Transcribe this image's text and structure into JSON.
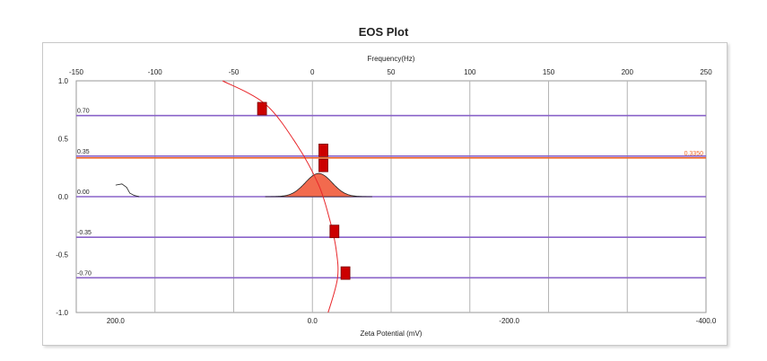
{
  "chart_data": {
    "type": "line",
    "title": "EOS Plot",
    "top_axis": {
      "label": "Frequency(Hz)",
      "range": [
        -150,
        250
      ],
      "ticks": [
        -150,
        -100,
        -50,
        0,
        50,
        100,
        150,
        200,
        250
      ],
      "tick_labels": [
        "-150",
        "-100",
        "-50",
        "0",
        "50",
        "100",
        "150",
        "200",
        "250"
      ]
    },
    "bottom_axis": {
      "label": "Zeta Potential (mV)",
      "ticks": [
        200,
        0,
        -200,
        -400
      ],
      "tick_labels": [
        "200.0",
        "0.0",
        "-200.0",
        "-400.0"
      ]
    },
    "y_axis": {
      "range": [
        -1.0,
        1.0
      ],
      "ticks": [
        1.0,
        0.5,
        0.0,
        -0.5,
        -1.0
      ],
      "tick_labels": [
        "1.0",
        "0.5",
        "0.0",
        "-0.5",
        "-1.0"
      ]
    },
    "grid": true,
    "cell_levels": [
      {
        "value": 0.7,
        "label": "0.70"
      },
      {
        "value": 0.35,
        "label": "0.35"
      },
      {
        "value": 0.0,
        "label": "0.00"
      },
      {
        "value": -0.35,
        "label": "-0.35"
      },
      {
        "value": -0.7,
        "label": "-0.70"
      }
    ],
    "stationary_level": {
      "value": 0.335,
      "label": "0.3350"
    },
    "markers": [
      {
        "freq": -32,
        "y": 0.76
      },
      {
        "freq": 7,
        "y": 0.4
      },
      {
        "freq": 7,
        "y": 0.27
      },
      {
        "freq": 14,
        "y": -0.3
      },
      {
        "freq": 21,
        "y": -0.66
      }
    ],
    "parabola_points": [
      {
        "freq": -57,
        "y": 1.0
      },
      {
        "freq": -30,
        "y": 0.8
      },
      {
        "freq": -10,
        "y": 0.45
      },
      {
        "freq": 4,
        "y": 0.1
      },
      {
        "freq": 11,
        "y": -0.2
      },
      {
        "freq": 15,
        "y": -0.45
      },
      {
        "freq": 16,
        "y": -0.7
      },
      {
        "freq": 10,
        "y": -1.0
      }
    ],
    "peak": {
      "center_freq": 4,
      "height": 0.2,
      "width": 8.5
    },
    "colors": {
      "level_line": "#8a63c9",
      "stationary_line": "#ef6a2a",
      "parabola": "#e8262a",
      "marker": "#cc0000",
      "peak_fill": "#f26a4e",
      "grid": "#b4b4b4"
    }
  }
}
